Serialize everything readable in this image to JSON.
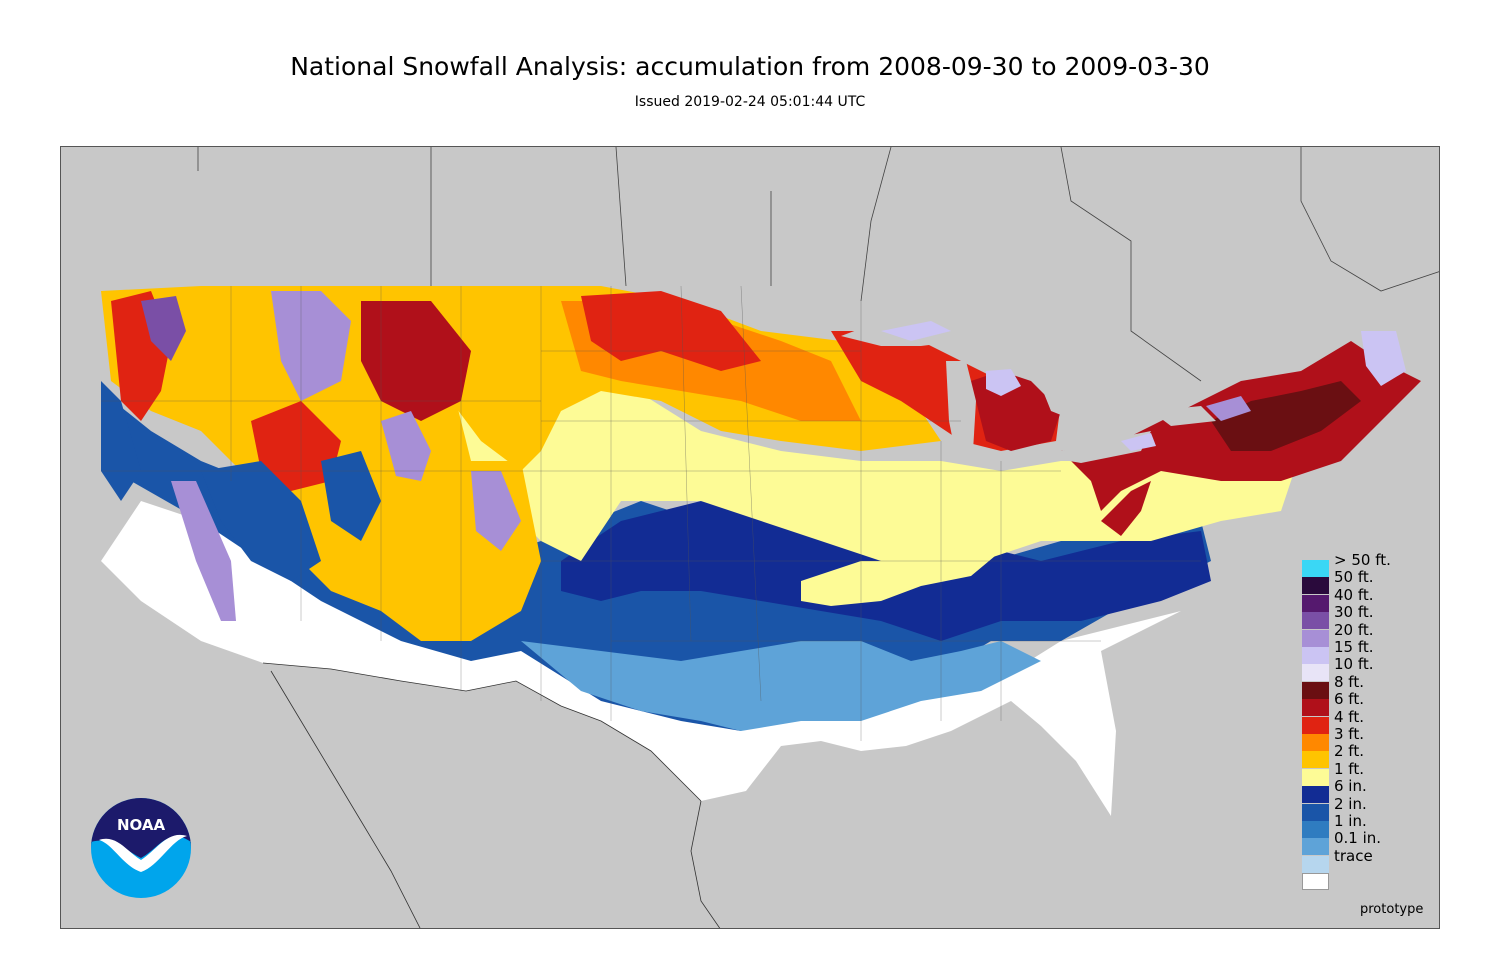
{
  "header": {
    "title": "National Snowfall Analysis: accumulation from 2008-09-30 to 2009-03-30",
    "subtitle": "Issued 2019-02-24 05:01:44 UTC"
  },
  "map": {
    "background_color": "#c8c8c8",
    "note": "prototype"
  },
  "legend": {
    "items": [
      {
        "label": "> 50 ft.",
        "color": "#3ad7f5"
      },
      {
        "label": "50 ft.",
        "color": "#2a0a3c"
      },
      {
        "label": "40 ft.",
        "color": "#55196e"
      },
      {
        "label": "30 ft.",
        "color": "#7a4fa6"
      },
      {
        "label": "20 ft.",
        "color": "#a78fd6"
      },
      {
        "label": "15 ft.",
        "color": "#cbc4f3"
      },
      {
        "label": "10 ft.",
        "color": "#e8e4f7"
      },
      {
        "label": "8 ft.",
        "color": "#6a0f12"
      },
      {
        "label": "6 ft.",
        "color": "#b0101a"
      },
      {
        "label": "4 ft.",
        "color": "#e02312"
      },
      {
        "label": "3 ft.",
        "color": "#ff8800"
      },
      {
        "label": "2 ft.",
        "color": "#ffc400"
      },
      {
        "label": "1 ft.",
        "color": "#fdfb96"
      },
      {
        "label": "6 in.",
        "color": "#122c94"
      },
      {
        "label": "2 in.",
        "color": "#1a55a8"
      },
      {
        "label": "1 in.",
        "color": "#2f7cc0"
      },
      {
        "label": "0.1 in.",
        "color": "#5ea3d8"
      },
      {
        "label": "trace",
        "color": "#b6d6ee"
      },
      {
        "label": "",
        "color": "#ffffff"
      }
    ]
  },
  "logo": {
    "text": "NOAA",
    "icon": "noaa-logo-icon",
    "colors": {
      "dark": "#1c1a6b",
      "light": "#00a5ec"
    }
  }
}
